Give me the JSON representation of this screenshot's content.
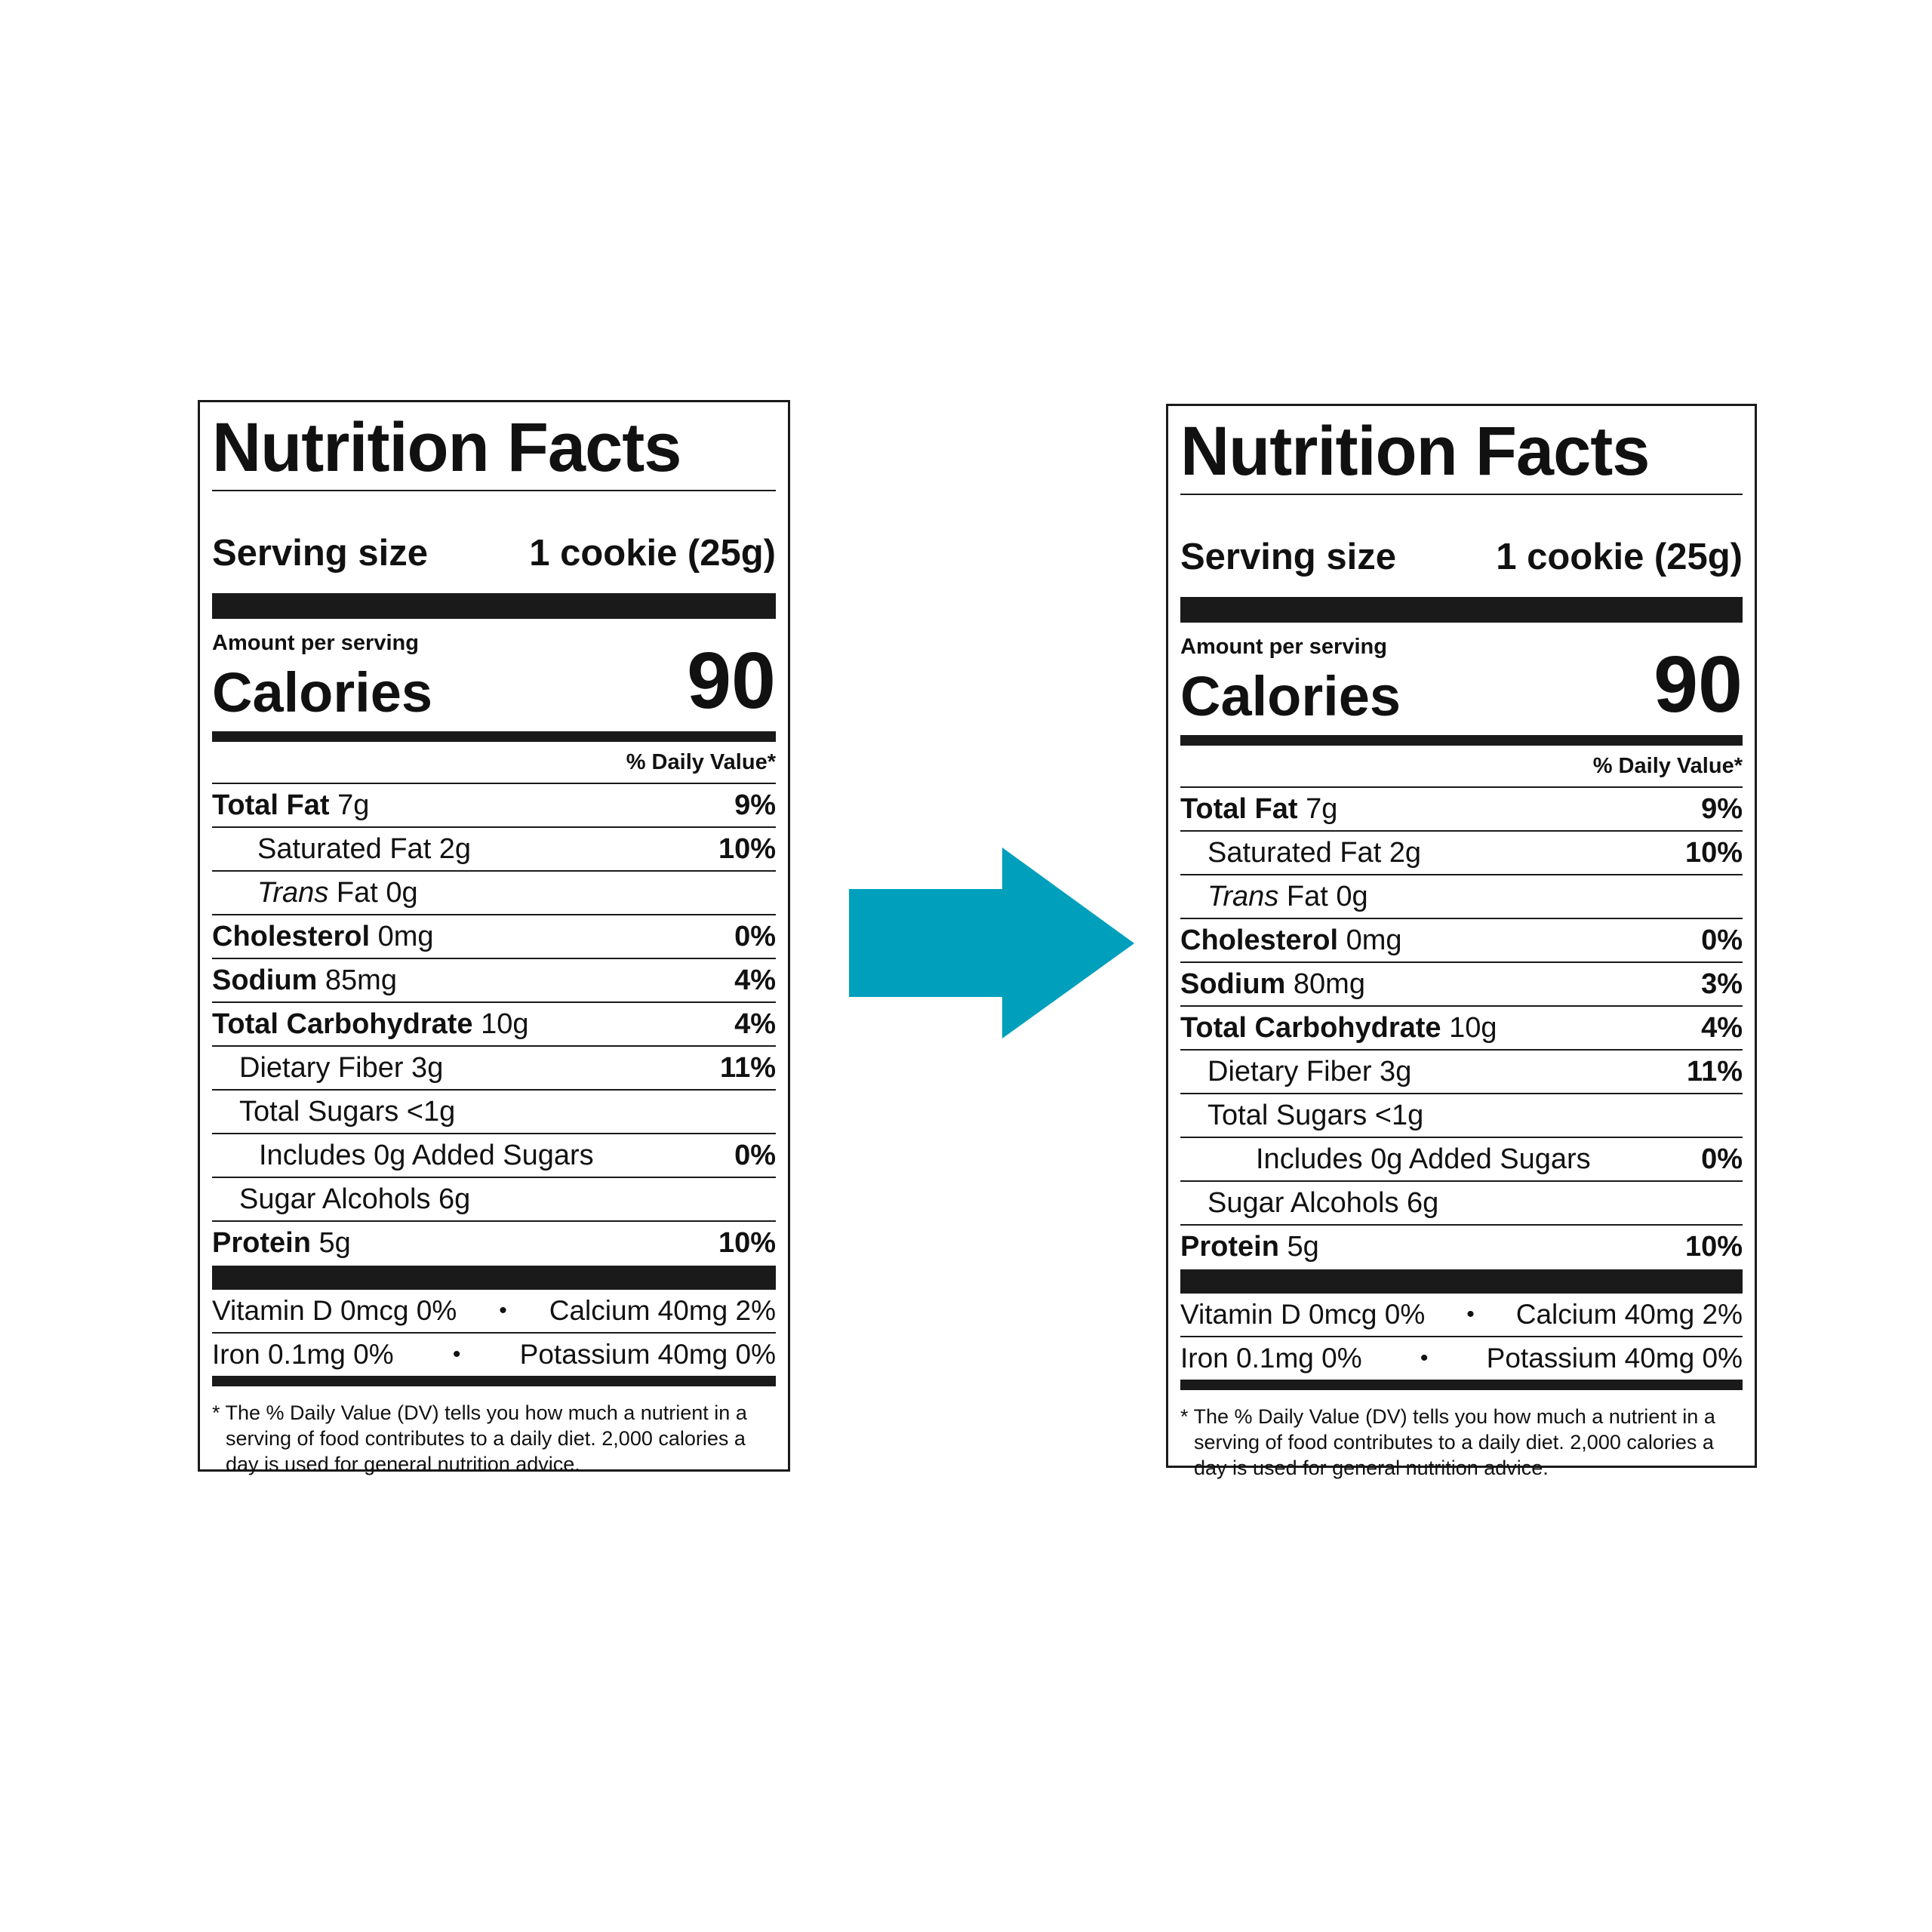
{
  "arrow_color": "#00a0bd",
  "labels": [
    {
      "title": "Nutrition Facts",
      "serving_label": "Serving size",
      "serving_value": "1 cookie (25g)",
      "amount_per_serving": "Amount per serving",
      "calories_label": "Calories",
      "calories_value": "90",
      "dv_header": "% Daily Value*",
      "nutrients": {
        "total_fat": {
          "name": "Total Fat",
          "amount": "7g",
          "dv": "9%"
        },
        "saturated_fat": {
          "name": "Saturated Fat 2g",
          "dv": "10%"
        },
        "trans_fat": {
          "name_italic": "Trans",
          "name_rest": "Fat 0g"
        },
        "cholesterol": {
          "name": "Cholesterol",
          "amount": "0mg",
          "dv": "0%"
        },
        "sodium": {
          "name": "Sodium",
          "amount": "85mg",
          "dv": "4%"
        },
        "total_carb": {
          "name": "Total Carbohydrate",
          "amount": "10g",
          "dv": "4%"
        },
        "dietary_fiber": {
          "name": "Dietary Fiber 3g",
          "dv": "11%"
        },
        "total_sugars": {
          "name": "Total Sugars <1g"
        },
        "added_sugars": {
          "name": "Includes 0g Added Sugars",
          "dv": "0%"
        },
        "sugar_alcohols": {
          "name": "Sugar Alcohols 6g"
        },
        "protein": {
          "name": "Protein",
          "amount": "5g",
          "dv": "10%"
        }
      },
      "vitamins": {
        "vitamin_d": "Vitamin D 0mcg 0%",
        "calcium": "Calcium 40mg 2%",
        "iron": "Iron 0.1mg 0%",
        "potassium": "Potassium 40mg 0%",
        "bullet": "•"
      },
      "footnote": "* The % Daily Value (DV) tells you how much a nutrient in a serving of food contributes to a daily diet. 2,000 calories a day is used for general nutrition advice."
    },
    {
      "title": "Nutrition Facts",
      "serving_label": "Serving size",
      "serving_value": "1 cookie (25g)",
      "amount_per_serving": "Amount per serving",
      "calories_label": "Calories",
      "calories_value": "90",
      "dv_header": "% Daily Value*",
      "nutrients": {
        "total_fat": {
          "name": "Total Fat",
          "amount": "7g",
          "dv": "9%"
        },
        "saturated_fat": {
          "name": "Saturated Fat 2g",
          "dv": "10%"
        },
        "trans_fat": {
          "name_italic": "Trans",
          "name_rest": "Fat 0g"
        },
        "cholesterol": {
          "name": "Cholesterol",
          "amount": "0mg",
          "dv": "0%"
        },
        "sodium": {
          "name": "Sodium",
          "amount": "80mg",
          "dv": "3%"
        },
        "total_carb": {
          "name": "Total Carbohydrate",
          "amount": "10g",
          "dv": "4%"
        },
        "dietary_fiber": {
          "name": "Dietary Fiber 3g",
          "dv": "11%"
        },
        "total_sugars": {
          "name": "Total Sugars <1g"
        },
        "added_sugars": {
          "name": "Includes 0g Added Sugars",
          "dv": "0%"
        },
        "sugar_alcohols": {
          "name": "Sugar Alcohols 6g"
        },
        "protein": {
          "name": "Protein",
          "amount": "5g",
          "dv": "10%"
        }
      },
      "vitamins": {
        "vitamin_d": "Vitamin D 0mcg 0%",
        "calcium": "Calcium 40mg 2%",
        "iron": "Iron 0.1mg 0%",
        "potassium": "Potassium 40mg 0%",
        "bullet": "•"
      },
      "footnote": "* The % Daily Value (DV) tells you how much a nutrient in a serving of food contributes to a daily diet. 2,000 calories a day is used for general nutrition advice."
    }
  ]
}
